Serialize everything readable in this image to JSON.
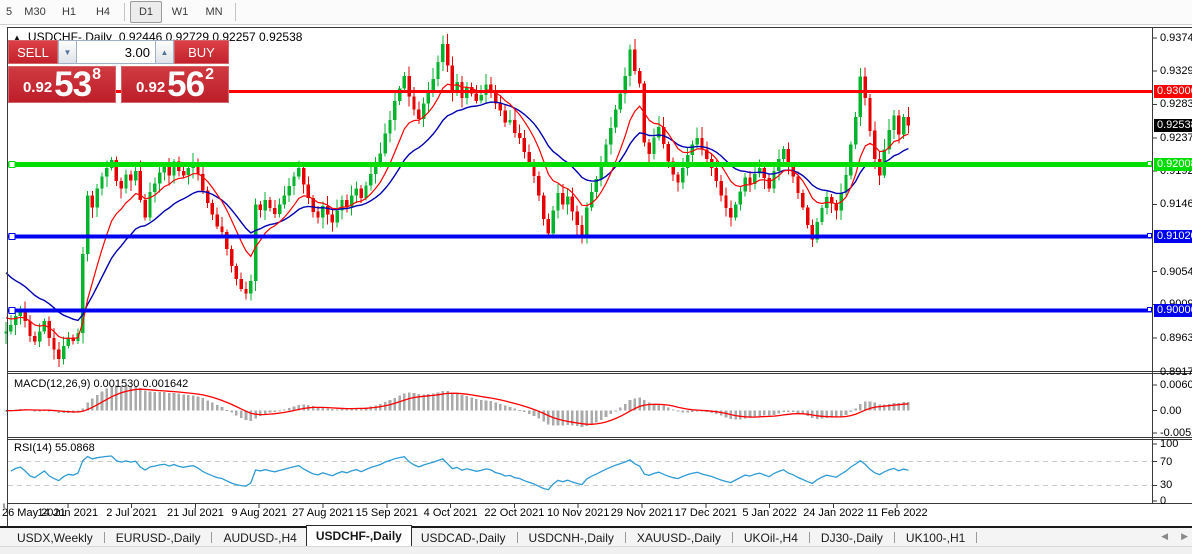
{
  "toolbar": {
    "timeframes": [
      {
        "label": "5",
        "active": false
      },
      {
        "label": "M30",
        "active": false
      },
      {
        "label": "H1",
        "active": false
      },
      {
        "label": "H4",
        "active": false
      },
      {
        "label": "D1",
        "active": true
      },
      {
        "label": "W1",
        "active": false
      },
      {
        "label": "MN",
        "active": false
      }
    ]
  },
  "chart": {
    "title": {
      "symbol": "USDCHF-,Daily",
      "ohlc": "0.92446 0.92729 0.92257 0.92538"
    },
    "trade_panel": {
      "sell_label": "SELL",
      "buy_label": "BUY",
      "volume": "3.00",
      "sell_price": {
        "prefix": "0.92",
        "big": "53",
        "sup": "8"
      },
      "buy_price": {
        "prefix": "0.92",
        "big": "56",
        "sup": "2"
      }
    },
    "price_axis_ticks": [
      {
        "label": "0.93740",
        "value": 0.9374
      },
      {
        "label": "0.93290",
        "value": 0.9329
      },
      {
        "label": "0.92830",
        "value": 0.9283
      },
      {
        "label": "0.92370",
        "value": 0.9237
      },
      {
        "label": "0.91920",
        "value": 0.9192
      },
      {
        "label": "0.91460",
        "value": 0.9146
      },
      {
        "label": "0.90540",
        "value": 0.9054
      },
      {
        "label": "0.90090",
        "value": 0.9009
      },
      {
        "label": "0.89630",
        "value": 0.8963
      },
      {
        "label": "0.89170",
        "value": 0.8917
      }
    ],
    "hlines": [
      {
        "label": "0.93006",
        "value": 0.93006,
        "color": "#ff0000",
        "width": 3,
        "marker": false
      },
      {
        "label": "0.92008",
        "value": 0.92008,
        "color": "#00dd00",
        "width": 5,
        "marker": true
      },
      {
        "label": "0.91020",
        "value": 0.9102,
        "color": "#0000f0",
        "width": 4,
        "marker": true
      },
      {
        "label": "0.90006",
        "value": 0.90006,
        "color": "#0000f0",
        "width": 4,
        "marker": true
      }
    ],
    "current_price": {
      "label": "0.92538",
      "value": 0.92538
    },
    "colors": {
      "candle_up": "#00b42c",
      "candle_down": "#e60000",
      "ma_fast": "#ff0000",
      "ma_slow": "#0000b4",
      "macd_hist": "#aaaaaa",
      "macd_signal": "#ff0000",
      "rsi_line": "#2e9bd6",
      "level_dash": "#c9c9c9",
      "panel_red": "#c6242e"
    },
    "chart_data": {
      "type": "candlestick",
      "symbol": "USDCHF",
      "timeframe": "Daily",
      "first_open": 0.8969,
      "closes": [
        0.8972,
        0.8981,
        0.8993,
        0.8999,
        0.8986,
        0.8966,
        0.8958,
        0.8972,
        0.8986,
        0.8963,
        0.8947,
        0.8934,
        0.8952,
        0.8964,
        0.8959,
        0.897,
        0.9078,
        0.9158,
        0.9142,
        0.9168,
        0.9184,
        0.9196,
        0.9207,
        0.9178,
        0.9168,
        0.9187,
        0.9179,
        0.9192,
        0.9152,
        0.9128,
        0.9163,
        0.9175,
        0.919,
        0.9198,
        0.9186,
        0.9205,
        0.9192,
        0.9186,
        0.9196,
        0.9203,
        0.9188,
        0.9165,
        0.9148,
        0.9132,
        0.9116,
        0.9108,
        0.9085,
        0.9062,
        0.9044,
        0.903,
        0.9024,
        0.9041,
        0.9146,
        0.9138,
        0.9152,
        0.9141,
        0.9133,
        0.9146,
        0.9158,
        0.9171,
        0.9184,
        0.9196,
        0.9173,
        0.9155,
        0.9136,
        0.9128,
        0.9144,
        0.9132,
        0.9121,
        0.9138,
        0.9152,
        0.9143,
        0.9158,
        0.9168,
        0.9155,
        0.9172,
        0.9188,
        0.9202,
        0.9216,
        0.9243,
        0.9262,
        0.9288,
        0.9305,
        0.9322,
        0.9294,
        0.9276,
        0.9263,
        0.9284,
        0.9302,
        0.9318,
        0.9341,
        0.9366,
        0.9336,
        0.9301,
        0.9314,
        0.9292,
        0.9307,
        0.9298,
        0.9288,
        0.9296,
        0.931,
        0.9303,
        0.9284,
        0.9275,
        0.9258,
        0.9262,
        0.9244,
        0.9237,
        0.9218,
        0.9202,
        0.9185,
        0.9158,
        0.9126,
        0.9106,
        0.9138,
        0.9162,
        0.9146,
        0.9157,
        0.9136,
        0.9118,
        0.9104,
        0.9142,
        0.9163,
        0.9181,
        0.9204,
        0.9228,
        0.9251,
        0.9276,
        0.9298,
        0.9322,
        0.9358,
        0.9329,
        0.9312,
        0.9231,
        0.9215,
        0.9238,
        0.9252,
        0.9229,
        0.9205,
        0.9187,
        0.9176,
        0.9196,
        0.9214,
        0.9228,
        0.9237,
        0.9221,
        0.9208,
        0.9196,
        0.9178,
        0.9158,
        0.9141,
        0.9128,
        0.9146,
        0.9164,
        0.9183,
        0.9174,
        0.9188,
        0.9196,
        0.9182,
        0.9168,
        0.9192,
        0.9208,
        0.9222,
        0.9198,
        0.9184,
        0.9162,
        0.9142,
        0.9118,
        0.9098,
        0.9122,
        0.9141,
        0.9156,
        0.9147,
        0.9138,
        0.9162,
        0.9186,
        0.9228,
        0.9266,
        0.9321,
        0.9292,
        0.9247,
        0.9208,
        0.9186,
        0.9221,
        0.9248,
        0.9268,
        0.9242,
        0.9266,
        0.92538
      ]
    }
  },
  "macd_panel": {
    "label": "MACD(12,26,9)",
    "values": "0.001530 0.001642",
    "axis_ticks": [
      {
        "label": "0.006038",
        "value": 0.006038
      },
      {
        "label": "0.00",
        "value": 0
      },
      {
        "label": "-0.005228",
        "value": -0.005228
      }
    ]
  },
  "rsi_panel": {
    "label": "RSI(14)",
    "value": "55.0868",
    "axis_ticks": [
      {
        "label": "100",
        "value": 100
      },
      {
        "label": "70",
        "value": 70
      },
      {
        "label": "30",
        "value": 30
      },
      {
        "label": "0",
        "value": 0
      }
    ],
    "levels": [
      70,
      30
    ]
  },
  "time_axis": {
    "labels": [
      "26 May 2021",
      "14 Jun 2021",
      "2 Jul 2021",
      "21 Jul 2021",
      "9 Aug 2021",
      "27 Aug 2021",
      "15 Sep 2021",
      "4 Oct 2021",
      "22 Oct 2021",
      "10 Nov 2021",
      "29 Nov 2021",
      "17 Dec 2021",
      "5 Jan 2022",
      "24 Jan 2022",
      "11 Feb 2022"
    ]
  },
  "tab_bar": {
    "tabs": [
      {
        "label": "USDX,Weekly",
        "active": false
      },
      {
        "label": "EURUSD-,Daily",
        "active": false
      },
      {
        "label": "AUDUSD-,H4",
        "active": false
      },
      {
        "label": "USDCHF-,Daily",
        "active": true
      },
      {
        "label": "USDCAD-,Daily",
        "active": false
      },
      {
        "label": "USDCNH-,Daily",
        "active": false
      },
      {
        "label": "XAUUSD-,Daily",
        "active": false
      },
      {
        "label": "UKOil-,H4",
        "active": false
      },
      {
        "label": "DJ30-,Daily",
        "active": false
      },
      {
        "label": "UK100-,H1",
        "active": false
      }
    ],
    "scroll_left": "◀",
    "scroll_right": "▶"
  }
}
